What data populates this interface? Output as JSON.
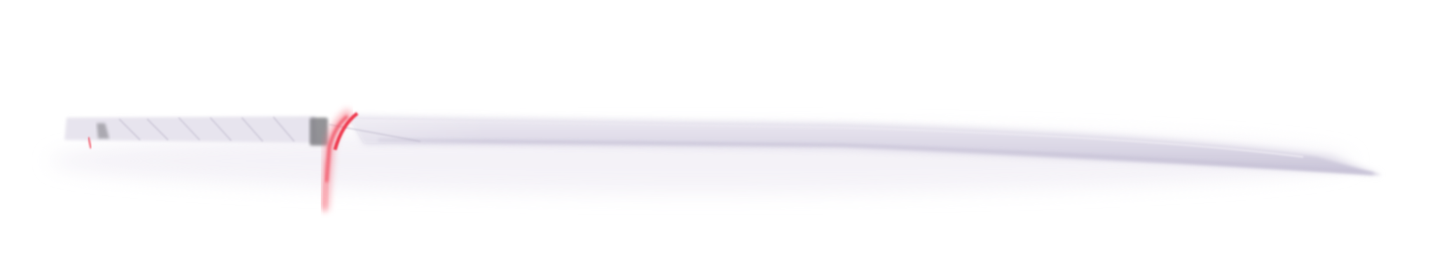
{
  "scene": {
    "subject": "katana-sword-icon",
    "style": "soft-blurred",
    "colors": {
      "background": "#ffffff",
      "blade": "#d9d5e4",
      "blade_shadow": "#c6c1d6",
      "blade_edge": "#ebe8f1",
      "handle": "#e7e4ee",
      "handle_wrap": "#b9b4c8",
      "guard_accent": "#ef3b4f",
      "guard_glow": "#f77a88",
      "collar": "#6f6f74",
      "shadow": "#ece8f2"
    }
  }
}
